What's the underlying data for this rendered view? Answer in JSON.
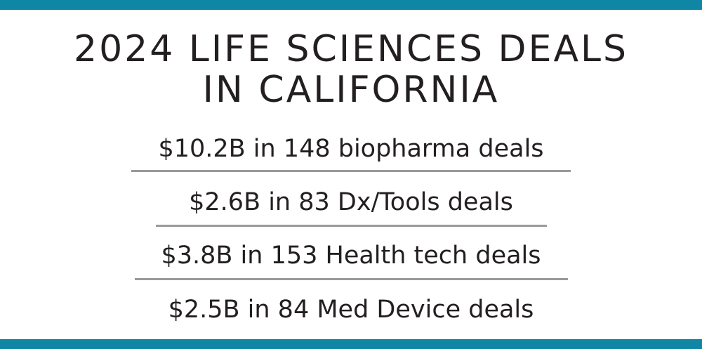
{
  "colors": {
    "accent_bar": "#0f86a4",
    "text": "#231f20",
    "divider": "#9a9a9a"
  },
  "title": {
    "line1": "2024 LIFE SCIENCES DEALS",
    "line2": "IN CALIFORNIA"
  },
  "stats": [
    {
      "text": "$10.2B in 148 biopharma deals",
      "amount": "$10.2B",
      "deals": 148,
      "sector": "biopharma"
    },
    {
      "text": "$2.6B in 83 Dx/Tools deals",
      "amount": "$2.6B",
      "deals": 83,
      "sector": "Dx/Tools"
    },
    {
      "text": "$3.8B in 153 Health tech deals",
      "amount": "$3.8B",
      "deals": 153,
      "sector": "Health tech"
    },
    {
      "text": "$2.5B in 84 Med Device deals",
      "amount": "$2.5B",
      "deals": 84,
      "sector": "Med Device"
    }
  ]
}
